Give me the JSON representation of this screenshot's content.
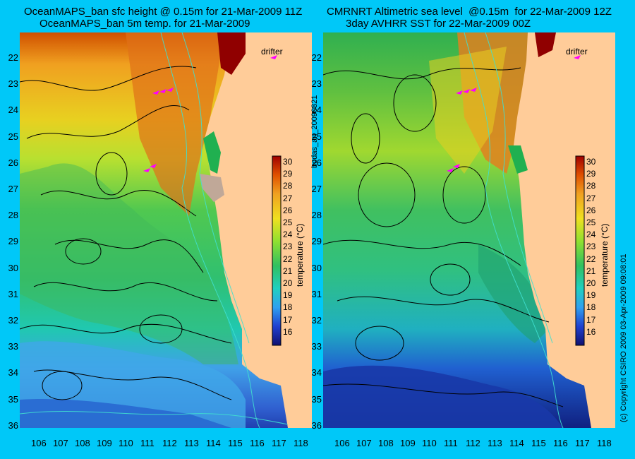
{
  "panels": [
    {
      "title_line1": "OceanMAPS_ban sfc height @ 0.15m for 21-Mar-2009 11Z",
      "title_line2": "OceanMAPS_ban 5m temp. for 21-Mar-2009",
      "drifter_label": "drifter",
      "colorbar_label": "temperature (°C)"
    },
    {
      "title_line1": "CMRNRT Altimetric sea level  @0.15m  for 22-Mar-2009 12Z",
      "title_line2": "3day AVHRR SST for 22-Mar-2009 00Z",
      "drifter_label": "drifter",
      "colorbar_label": "temperature (°C)"
    }
  ],
  "x_ticks": [
    "106",
    "107",
    "108",
    "109",
    "110",
    "111",
    "112",
    "113",
    "114",
    "115",
    "116",
    "117",
    "118"
  ],
  "y_ticks": [
    "22",
    "23",
    "24",
    "25",
    "26",
    "27",
    "28",
    "29",
    "30",
    "31",
    "32",
    "33",
    "34",
    "35",
    "36"
  ],
  "colorbar_ticks": [
    "30",
    "29",
    "28",
    "27",
    "26",
    "25",
    "24",
    "23",
    "22",
    "21",
    "20",
    "19",
    "18",
    "17",
    "16"
  ],
  "side_text_left": "bodas_an_20090321",
  "side_text_right": "(c) Copyright CSIRO 2009   03-Apr-2009 09:08:01",
  "colors": {
    "background": "#00c8f8",
    "land": "#ffcc99",
    "drifter": "#ff00ff",
    "coastline_contour": "#40e0d0"
  }
}
